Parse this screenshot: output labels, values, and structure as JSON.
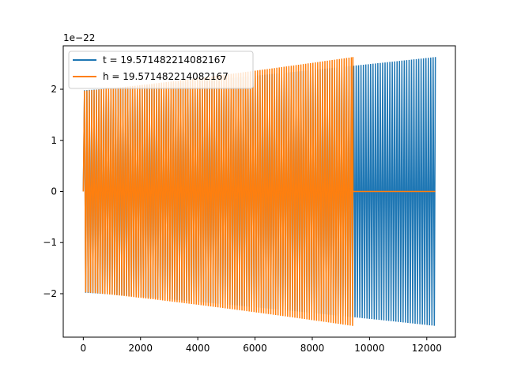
{
  "chart_data": {
    "type": "line",
    "title": "",
    "xlabel": "",
    "ylabel": "",
    "y_offset_text": "1e−22",
    "xlim": [
      -700,
      13000
    ],
    "ylim": [
      -2.85,
      2.85
    ],
    "x_ticks": [
      0,
      2000,
      4000,
      6000,
      8000,
      10000,
      12000
    ],
    "x_tick_labels": [
      "0",
      "2000",
      "4000",
      "6000",
      "8000",
      "10000",
      "12000"
    ],
    "y_ticks": [
      -2,
      -1,
      0,
      1,
      2
    ],
    "y_tick_labels": [
      "−2",
      "−1",
      "0",
      "1",
      "2"
    ],
    "grid": false,
    "legend_position": "upper-left",
    "series": [
      {
        "name": "t = 19.571482214082167",
        "color": "#1f77b4",
        "style": "oscillating",
        "x_start": 0,
        "x_end": 12300,
        "amplitude_start": 1.98,
        "amplitude_end": 2.63,
        "peak_at_start": 2.05,
        "settles_to_zero_after": null
      },
      {
        "name": "h = 19.571482214082167",
        "color": "#ff7f0e",
        "style": "oscillating",
        "x_start": 0,
        "x_end": 12300,
        "amplitude_start": 1.97,
        "amplitude_end": 2.63,
        "oscillation_end": 9420,
        "flat_after_value": 0
      }
    ]
  }
}
